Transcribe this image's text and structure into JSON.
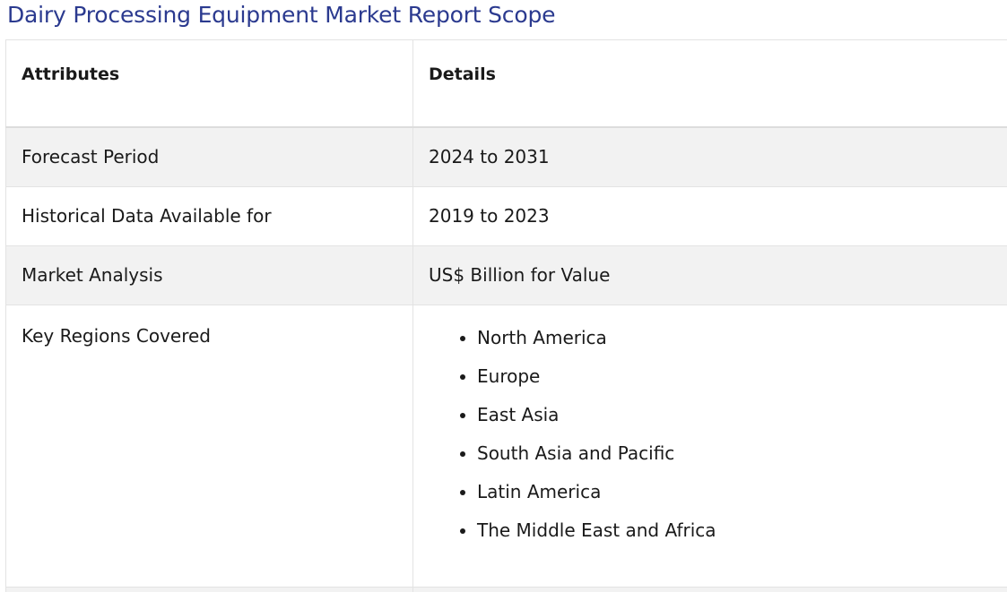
{
  "title": "Dairy Processing Equipment Market Report Scope",
  "table": {
    "headers": [
      "Attributes",
      "Details"
    ],
    "rows": [
      {
        "attribute": "Forecast Period",
        "detail": "2024 to 2031"
      },
      {
        "attribute": "Historical Data Available for",
        "detail": "2019 to 2023"
      },
      {
        "attribute": "Market Analysis",
        "detail": "US$ Billion for Value"
      },
      {
        "attribute": "Key Regions Covered",
        "detail_list": [
          "North America",
          "Europe",
          "East Asia",
          "South Asia and Pacific",
          "Latin America",
          "The Middle East and Africa"
        ]
      }
    ]
  }
}
